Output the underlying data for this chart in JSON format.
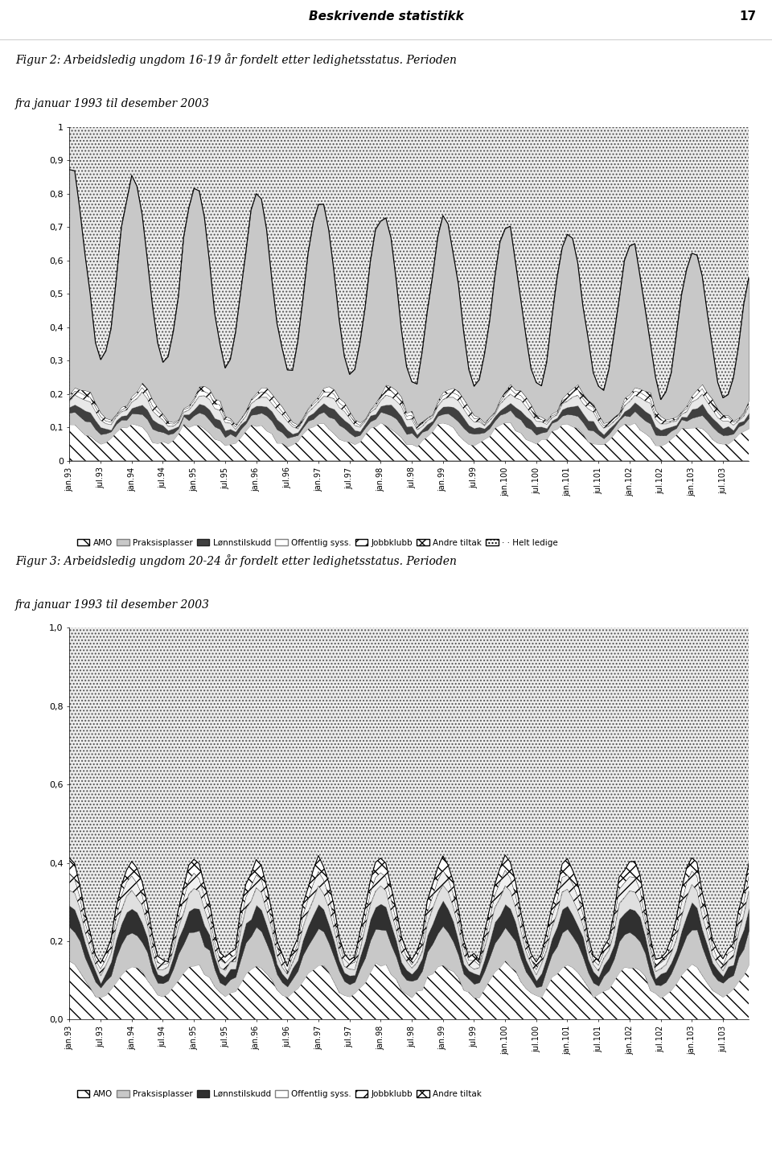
{
  "title1_line1": "Figur 2: Arbeidsledig ungdom 16-19 år fordelt etter ledighetsstatus. Perioden",
  "title1_line2": "fra januar 1993 til desember 2003",
  "title2_line1": "Figur 3: Arbeidsledig ungdom 20-24 år fordelt etter ledighetsstatus. Perioden",
  "title2_line2": "fra januar 1993 til desember 2003",
  "header_text": "Beskrivende statistikk",
  "header_page": "17",
  "legend_labels1": [
    "AMO",
    "Praksisplasser",
    "Lønnstilskudd",
    "Offentlig syss.",
    "Jobbklubb",
    "Andre tiltak",
    "· · Helt ledige"
  ],
  "legend_labels2": [
    "AMO",
    "Praksisplasser",
    "Lønnstilskudd",
    "Offentlig syss.",
    "Jobbklubb",
    "Andre tiltak"
  ],
  "fig_bg": "#ffffff",
  "chart_bg": "#d3d3d3",
  "yticks1": [
    0,
    0.1,
    0.2,
    0.3,
    0.4,
    0.5,
    0.6,
    0.7,
    0.8,
    0.9,
    1
  ],
  "ytick_labels1": [
    "0",
    "0,1",
    "0,2",
    "0,3",
    "0,4",
    "0,5",
    "0,6",
    "0,7",
    "0,8",
    "0,9",
    "1"
  ],
  "yticks2": [
    0.0,
    0.2,
    0.4,
    0.6,
    0.8,
    1.0
  ],
  "ytick_labels2": [
    "0,0",
    "0,2",
    "0,4",
    "0,6",
    "0,8",
    "1,0"
  ]
}
